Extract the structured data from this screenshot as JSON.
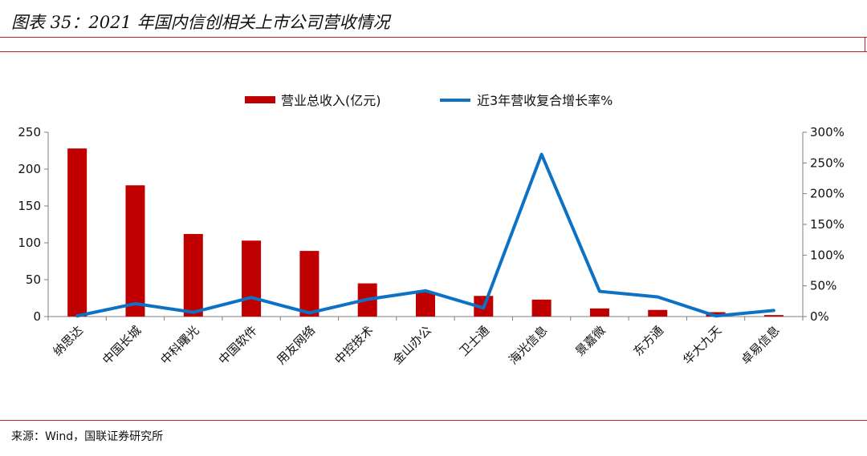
{
  "figure": {
    "title": "图表 35：2021 年国内信创相关上市公司营收情况",
    "source": "来源：Wind，国联证券研究所"
  },
  "colors": {
    "bar": "#c00000",
    "line": "#0e72c4",
    "rule": "#c0202a"
  },
  "chart_data": {
    "type": "bar",
    "title": "",
    "xlabel": "",
    "ylabel": "",
    "categories": [
      "纳思达",
      "中国长城",
      "中科曙光",
      "中国软件",
      "用友网络",
      "中控技术",
      "金山办公",
      "卫士通",
      "海光信息",
      "景嘉微",
      "东方通",
      "华大九天",
      "卓易信息"
    ],
    "series": [
      {
        "name": "营业总收入(亿元)",
        "type": "bar",
        "axis": "left",
        "values": [
          228,
          178,
          112,
          103,
          89,
          45,
          33,
          28,
          23,
          11,
          9,
          6,
          2
        ]
      },
      {
        "name": "近3年营收复合增长率%",
        "type": "line",
        "axis": "right",
        "values": [
          1,
          21,
          7,
          31,
          6,
          28,
          42,
          14,
          264,
          41,
          32,
          1,
          10
        ]
      }
    ],
    "ylim": [
      0,
      250
    ],
    "yticks": [
      "0",
      "50",
      "100",
      "150",
      "200",
      "250"
    ],
    "y2lim": [
      0,
      300
    ],
    "y2ticks": [
      "0%",
      "50%",
      "100%",
      "150%",
      "200%",
      "250%",
      "300%"
    ],
    "legend_position": "top-center",
    "grid": false
  }
}
